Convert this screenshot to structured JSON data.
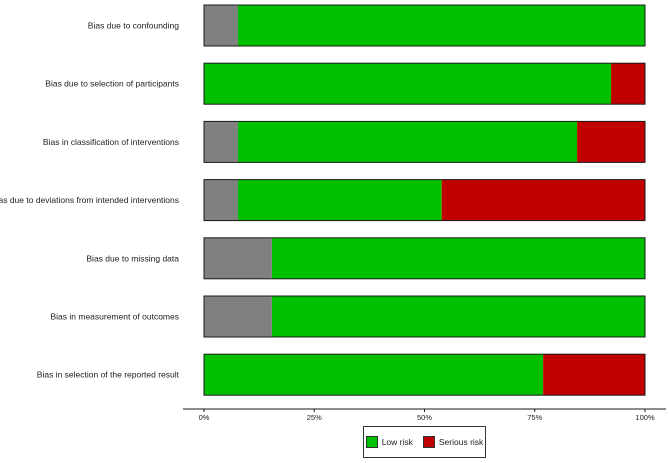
{
  "chart_data": {
    "type": "bar",
    "stacked": true,
    "orientation": "horizontal",
    "categories": [
      "Bias due to confounding",
      "Bias due to selection of participants",
      "Bias in classification of interventions",
      "Bias due to deviations from intended interventions",
      "Bias due to missing data",
      "Bias in measurement of outcomes",
      "Bias in selection of the reported result"
    ],
    "series": [
      {
        "key": "no_information",
        "color": "#808080",
        "values": [
          7.7,
          0,
          7.7,
          7.7,
          15.4,
          15.4,
          0
        ]
      },
      {
        "key": "low",
        "name": "Low risk",
        "color": "#00c000",
        "values": [
          92.3,
          92.3,
          76.9,
          46.2,
          84.6,
          84.6,
          76.9
        ]
      },
      {
        "key": "serious",
        "name": "Serious risk",
        "color": "#c00000",
        "values": [
          0,
          7.7,
          15.4,
          46.1,
          0,
          0,
          23.1
        ]
      }
    ],
    "xlim": [
      0,
      100
    ],
    "x_ticks": [
      "0%",
      "25%",
      "50%",
      "75%",
      "100%"
    ],
    "x_tick_values": [
      0,
      25,
      50,
      75,
      100
    ],
    "legend": {
      "position": "bottom",
      "items": [
        {
          "label": "Low risk",
          "color": "#00c000"
        },
        {
          "label": "Serious risk",
          "color": "#c00000"
        }
      ]
    },
    "grid": false
  }
}
